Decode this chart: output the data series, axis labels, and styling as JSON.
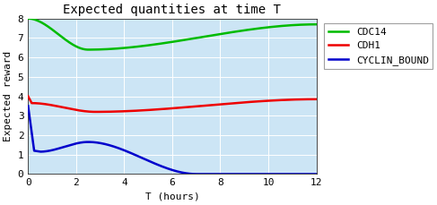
{
  "title": "Expected quantities at time T",
  "xlabel": "T (hours)",
  "ylabel": "Expected reward",
  "xlim": [
    0,
    12
  ],
  "ylim": [
    0,
    8
  ],
  "xticks": [
    0,
    2,
    4,
    6,
    8,
    10,
    12
  ],
  "yticks": [
    0,
    1,
    2,
    3,
    4,
    5,
    6,
    7,
    8
  ],
  "fig_background": "#ffffff",
  "plot_background": "#cce5f5",
  "grid_color": "#ffffff",
  "series": {
    "CDC14": {
      "color": "#00bb00"
    },
    "CDH1": {
      "color": "#ee0000"
    },
    "CYCLIN_BOUND": {
      "color": "#0000cc"
    }
  },
  "title_fontsize": 10,
  "label_fontsize": 8,
  "tick_fontsize": 8,
  "legend_fontsize": 8,
  "linewidth": 1.8
}
